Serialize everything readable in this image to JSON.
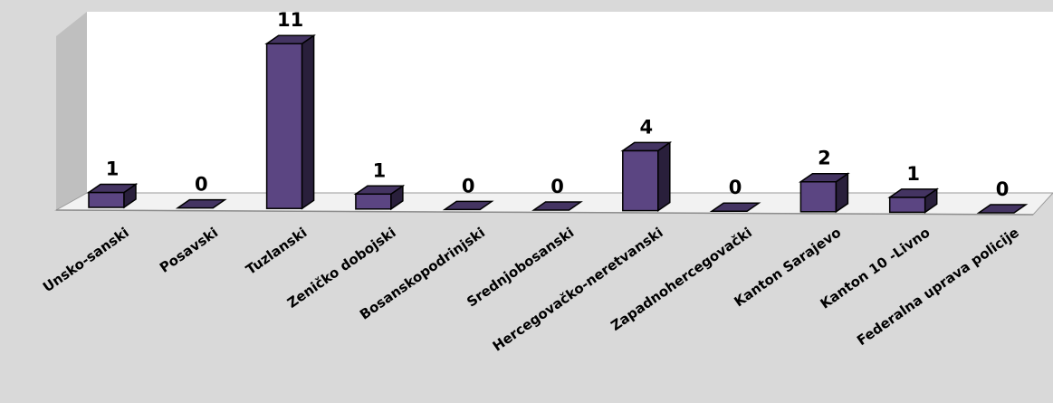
{
  "chart_data": {
    "type": "bar",
    "title": "",
    "xlabel": "",
    "ylabel": "",
    "ylim": [
      0,
      11
    ],
    "grid": false,
    "legend": "none",
    "style": "3d",
    "bar_color": "#5b4582",
    "categories": [
      "Unsko-sanski",
      "Posavski",
      "Tuzlanski",
      "Zeničko dobojski",
      "Bosanskopodrinjski",
      "Srednjobosanski",
      "Hercegovačko-neretvanski",
      "Zapadnohercegovački",
      "Kanton Sarajevo",
      "Kanton 10 -Livno",
      "Federalna uprava policije"
    ],
    "values": [
      1,
      0,
      11,
      1,
      0,
      0,
      4,
      0,
      2,
      1,
      0
    ],
    "value_labels": [
      "1",
      "0",
      "11",
      "1",
      "0",
      "0",
      "4",
      "0",
      "2",
      "1",
      "0"
    ]
  }
}
